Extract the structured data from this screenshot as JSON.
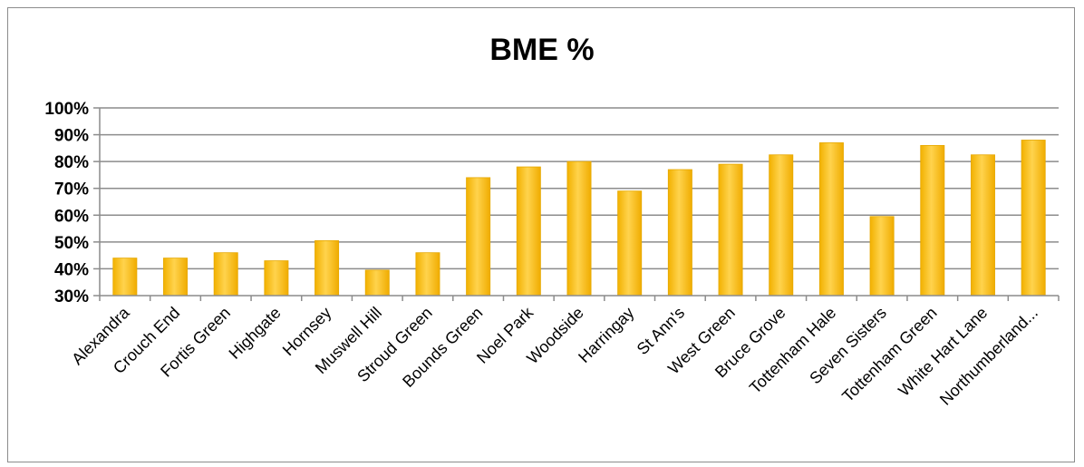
{
  "chart_data": {
    "type": "bar",
    "title": "BME %",
    "xlabel": "",
    "ylabel": "",
    "ylim": [
      0.3,
      1.0
    ],
    "yticks": [
      "30%",
      "40%",
      "50%",
      "60%",
      "70%",
      "80%",
      "90%",
      "100%"
    ],
    "grid": true,
    "legend": "none",
    "bar_color": "#ffc000",
    "categories": [
      "Alexandra",
      "Crouch End",
      "Fortis Green",
      "Highgate",
      "Hornsey",
      "Muswell Hill",
      "Stroud Green",
      "Bounds Green",
      "Noel Park",
      "Woodside",
      "Harringay",
      "St Ann's",
      "West Green",
      "Bruce Grove",
      "Tottenham Hale",
      "Seven Sisters",
      "Tottenham Green",
      "White Hart Lane",
      "Northumberland..."
    ],
    "values": [
      0.44,
      0.44,
      0.46,
      0.43,
      0.505,
      0.395,
      0.46,
      0.74,
      0.78,
      0.8,
      0.69,
      0.77,
      0.79,
      0.825,
      0.87,
      0.595,
      0.86,
      0.825,
      0.88
    ]
  }
}
